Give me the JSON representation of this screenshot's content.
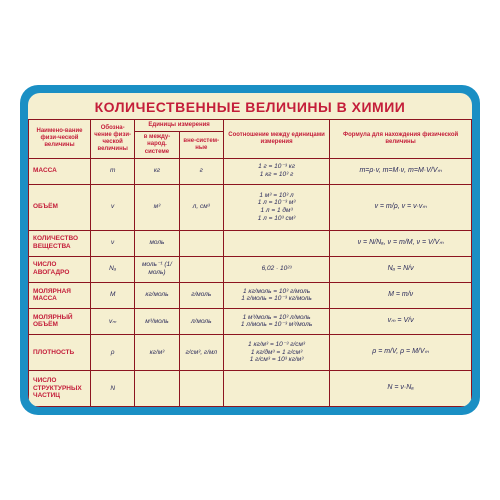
{
  "title": "КОЛИЧЕСТВЕННЫЕ ВЕЛИЧИНЫ В ХИМИИ",
  "colors": {
    "frame": "#1a8fc4",
    "background": "#f5efd0",
    "header_text": "#c41e3a",
    "border": "#8c1520",
    "body_text": "#2a2a5a"
  },
  "headers": {
    "h1": "Наимено-вание физи-ческой величины",
    "h2": "Обозна-чение физи-ческой величины",
    "h3": "Единицы измерения",
    "h3a": "в между-народ. системе",
    "h3b": "вне-систем-ные",
    "h4": "Соотношение между единицами измерения",
    "h5": "Формула для нахождения физической величины"
  },
  "rows": [
    {
      "name": "МАССА",
      "sym": "m",
      "si": "кг",
      "alt": "г",
      "rel": "1 г = 10⁻³ кг\n1 кг = 10³ г",
      "form": "m=ρ·v,  m=M·ν,  m=M·V/Vₘ"
    },
    {
      "name": "ОБЪЁМ",
      "sym": "v",
      "si": "м³",
      "alt": "л, см³",
      "rel": "1 м³ = 10³ л\n1 л = 10⁻³ м³\n1 л = 1 дм³\n1 л = 10³ см³",
      "form": "v = m/ρ,   v = ν·vₘ"
    },
    {
      "name": "КОЛИЧЕСТВО ВЕЩЕСТВА",
      "sym": "ν",
      "si": "моль",
      "alt": "",
      "rel": "",
      "form": "ν = N/Nₐ,  ν = m/M,  ν = V/Vₘ"
    },
    {
      "name": "ЧИСЛО АВОГАДРО",
      "sym": "Nₐ",
      "si": "моль⁻¹ (1/моль)",
      "alt": "",
      "rel": "6,02 · 10²³",
      "form": "Nₐ = N/ν"
    },
    {
      "name": "МОЛЯРНАЯ МАССА",
      "sym": "M",
      "si": "кг/моль",
      "alt": "г/моль",
      "rel": "1 кг/моль = 10³ г/моль\n1 г/моль = 10⁻³ кг/моль",
      "form": "M = m/ν"
    },
    {
      "name": "МОЛЯРНЫЙ ОБЪЁМ",
      "sym": "vₘ",
      "si": "м³/моль",
      "alt": "л/моль",
      "rel": "1 м³/моль = 10³ л/моль\n1 л/моль = 10⁻³ м³/моль",
      "form": "vₘ = V/ν"
    },
    {
      "name": "ПЛОТНОСТЬ",
      "sym": "ρ",
      "si": "кг/м³",
      "alt": "г/см³, г/мл",
      "rel": "1 кг/м³ = 10⁻³ г/см³\n1 кг/дм³ = 1 г/см³\n1 г/см³ = 10³ кг/м³",
      "form": "ρ = m/V,   ρ = M/Vₘ"
    },
    {
      "name": "ЧИСЛО СТРУКТУРНЫХ ЧАСТИЦ",
      "sym": "N",
      "si": "",
      "alt": "",
      "rel": "",
      "form": "N = ν·Nₐ"
    }
  ]
}
